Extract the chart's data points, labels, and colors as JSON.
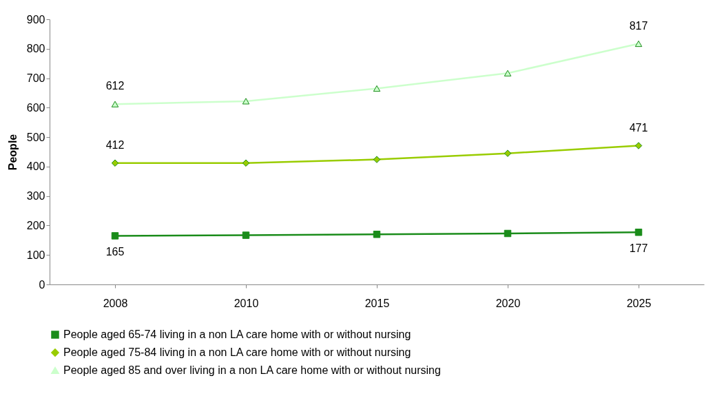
{
  "chart_data": {
    "type": "line",
    "ylabel": "People",
    "categories": [
      "2008",
      "2010",
      "2015",
      "2020",
      "2025"
    ],
    "ylim": [
      0,
      900
    ],
    "yticks": [
      0,
      100,
      200,
      300,
      400,
      500,
      600,
      700,
      800,
      900
    ],
    "grid": false,
    "legend": "bottom",
    "series": [
      {
        "name": "People aged 65-74 living in a non LA care home with or without nursing",
        "color": "#1a8c1a",
        "marker": "square",
        "values": [
          165,
          167,
          170,
          173,
          177
        ],
        "value_labels": [
          "165",
          null,
          null,
          null,
          "177"
        ]
      },
      {
        "name": "People aged 75-84 living in a non LA care home with or without nursing",
        "color": "#99cc00",
        "marker": "diamond",
        "values": [
          412,
          412,
          424,
          445,
          471
        ],
        "value_labels": [
          "412",
          null,
          null,
          null,
          "471"
        ]
      },
      {
        "name": "People aged 85 and over living in a non LA care home with or without nursing",
        "color": "#ccffcc",
        "marker": "triangle",
        "values": [
          612,
          622,
          665,
          717,
          817
        ],
        "value_labels": [
          "612",
          null,
          null,
          null,
          "817"
        ]
      }
    ]
  }
}
